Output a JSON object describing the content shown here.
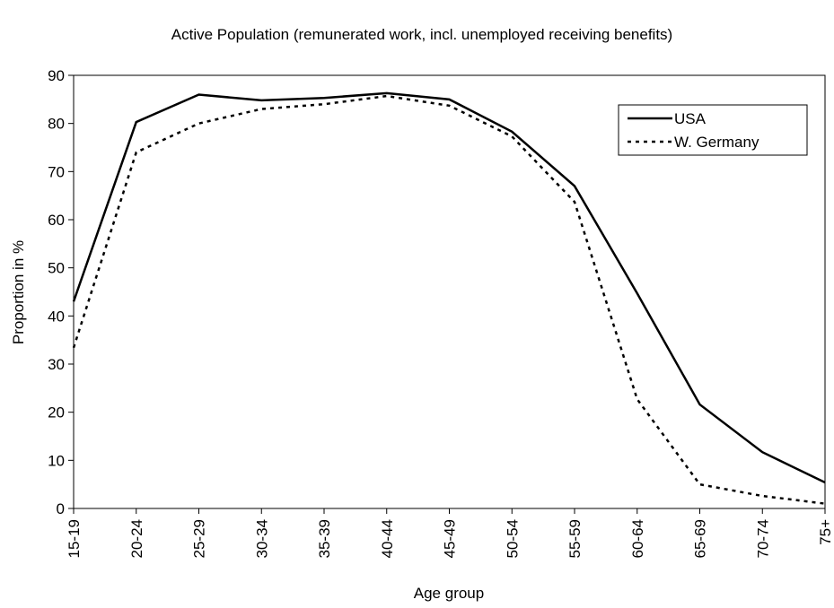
{
  "chart_data": {
    "type": "line",
    "title": "Active Population (remunerated work, incl. unemployed receiving benefits)",
    "x_label": "Age group",
    "y_label": "Proportion in %",
    "categories": [
      "15-19",
      "20-24",
      "25-29",
      "30-34",
      "35-39",
      "40-44",
      "45-49",
      "50-54",
      "55-59",
      "60-64",
      "65-69",
      "70-74",
      "75+"
    ],
    "series": [
      {
        "name": "USA",
        "color": "#000000",
        "dashed": false,
        "values": [
          43,
          80.3,
          86,
          84.8,
          85.3,
          86.3,
          85,
          78.3,
          67,
          44.7,
          21.6,
          11.7,
          5.4
        ]
      },
      {
        "name": "W. Germany",
        "color": "#000000",
        "dashed": true,
        "values": [
          33.4,
          74,
          80,
          83,
          84,
          85.7,
          83.7,
          77.3,
          63.7,
          22.7,
          5,
          2.6,
          1
        ]
      }
    ],
    "ylim": [
      0,
      90
    ],
    "yticks": [
      0,
      10,
      20,
      30,
      40,
      50,
      60,
      70,
      80,
      90
    ],
    "grid": false,
    "legend": "upper right"
  }
}
